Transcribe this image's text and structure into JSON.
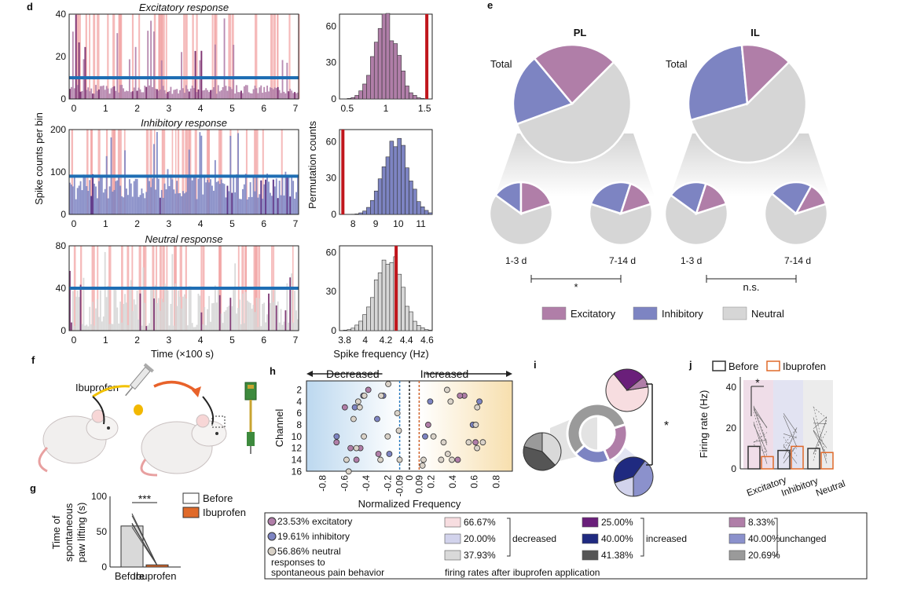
{
  "panels": {
    "d": "d",
    "e": "e",
    "f": "f",
    "g": "g",
    "h": "h",
    "i": "i",
    "j": "j"
  },
  "colors": {
    "excitatory": "#b07ea8",
    "inhibitory": "#7d84c2",
    "neutral": "#d6d6d6",
    "threshold": "#1f6eb4",
    "event": "#f2a3a3",
    "observed": "#c0161c",
    "before": "#333333",
    "ibuprofen": "#e06a2a"
  },
  "d": {
    "x_label": "Time (×100 s)",
    "y_label": "Spike counts per bin",
    "hist_x_label": "Spike frequency (Hz)",
    "hist_y_label": "Permutation counts",
    "time_ticks": [
      "0",
      "1",
      "2",
      "3",
      "4",
      "5",
      "6",
      "7"
    ],
    "rows": [
      {
        "title": "Excitatory response",
        "ymax": 40,
        "yticks": [
          "0",
          "20",
          "40"
        ],
        "threshold": 10,
        "hist_ticks": [
          "0.5",
          "1",
          "1.5"
        ],
        "hist_yticks": [
          "0",
          "30",
          "60"
        ],
        "hist_min": 0.4,
        "hist_max": 1.6,
        "hist_center": 1.0,
        "hist_sd": 0.15,
        "hist_ymax": 70,
        "observed": 1.53
      },
      {
        "title": "Inhibitory response",
        "ymax": 200,
        "yticks": [
          "0",
          "100",
          "200"
        ],
        "threshold": 90,
        "hist_ticks": [
          "8",
          "9",
          "10",
          "11"
        ],
        "hist_yticks": [
          "0",
          "30",
          "60"
        ],
        "hist_min": 7.4,
        "hist_max": 11.5,
        "hist_center": 9.9,
        "hist_sd": 0.55,
        "hist_ymax": 70,
        "observed": 7.55
      },
      {
        "title": "Neutral response",
        "ymax": 80,
        "yticks": [
          "0",
          "40",
          "80"
        ],
        "threshold": 40,
        "hist_ticks": [
          "3.8",
          "4",
          "4.2",
          "4.4",
          "4.6"
        ],
        "hist_yticks": [
          "0",
          "30",
          "60"
        ],
        "hist_min": 3.75,
        "hist_max": 4.65,
        "hist_center": 4.22,
        "hist_sd": 0.13,
        "hist_ymax": 65,
        "observed": 4.3
      }
    ]
  },
  "e": {
    "groups": [
      {
        "title": "PL",
        "total_label": "Total",
        "main": {
          "excitatory": 23.53,
          "inhibitory": 19.61,
          "neutral": 56.86
        },
        "subs": [
          {
            "label": "1-3 d",
            "excitatory": 20,
            "inhibitory": 15,
            "neutral": 65
          },
          {
            "label": "7-14 d",
            "excitatory": 15,
            "inhibitory": 25,
            "neutral": 60
          }
        ],
        "stat": "*"
      },
      {
        "title": "IL",
        "total_label": "Total",
        "main": {
          "excitatory": 14,
          "inhibitory": 28,
          "neutral": 58
        },
        "subs": [
          {
            "label": "1-3 d",
            "excitatory": 15,
            "inhibitory": 20,
            "neutral": 65
          },
          {
            "label": "7-14 d",
            "excitatory": 12,
            "inhibitory": 22,
            "neutral": 66
          }
        ],
        "stat": "n.s."
      }
    ],
    "legend": [
      "Excitatory",
      "Inhibitory",
      "Neutral"
    ]
  },
  "f": {
    "drug_label": "Ibuprofen"
  },
  "g": {
    "y_label_lines": [
      "Time of",
      "spontaneous",
      "paw lifting (s)"
    ],
    "yticks": [
      "0",
      "50",
      "100"
    ],
    "ymax": 100,
    "categories": [
      "Before",
      "Ibuprofen"
    ],
    "values": [
      58,
      3
    ],
    "stat": "***",
    "legend": [
      "Before",
      "Ibuprofen"
    ]
  },
  "h": {
    "decreased_label": "Decreased",
    "increased_label": "Increased",
    "x_label": "Normalized Frequency",
    "y_label": "Channel",
    "xticks": [
      "-0.8",
      "-0.6",
      "-0.4",
      "-0.2",
      "-0.09",
      "0",
      "0.09",
      "0.2",
      "0.4",
      "0.6",
      "0.8"
    ],
    "yticks": [
      "2",
      "4",
      "6",
      "8",
      "10",
      "12",
      "14",
      "16"
    ]
  },
  "i": {
    "stat": "*",
    "ring": {
      "excitatory": 23.53,
      "inhibitory": 19.61,
      "neutral": 56.86
    },
    "excitatory_pie": [
      66.67,
      25.0,
      8.33
    ],
    "inhibitory_pie": [
      20.0,
      40.0,
      40.0
    ],
    "neutral_pie": [
      37.93,
      41.38,
      20.69
    ]
  },
  "j": {
    "y_label": "Firing rate (Hz)",
    "yticks": [
      "0",
      "20",
      "40"
    ],
    "ymax": 45,
    "legend": [
      "Before",
      "Ibuprofen"
    ],
    "categories": [
      "Excitatory",
      "Inhibitory",
      "Neutral"
    ],
    "before": [
      11,
      9,
      10
    ],
    "after": [
      6,
      11,
      8
    ],
    "stat": "*"
  },
  "table": {
    "resp": [
      "23.53% excitatory",
      "19.61% inhibitory",
      "56.86% neutral"
    ],
    "resp_note1": "responses to",
    "resp_note2": "spontaneous pain behavior",
    "decreased": [
      "66.67%",
      "20.00%",
      "37.93%"
    ],
    "increased": [
      "25.00%",
      "40.00%",
      "41.38%"
    ],
    "unchanged": [
      "8.33%",
      "40.00%",
      "20.69%"
    ],
    "decreased_label": "decreased",
    "increased_label": "increased",
    "unchanged_label": "unchanged",
    "footer": "firing rates after ibuprofen application",
    "swatch_dec": [
      "#f7dde0",
      "#d2d3ec",
      "#d9d9d9"
    ],
    "swatch_inc": [
      "#6a1f7a",
      "#1f2a80",
      "#555555"
    ],
    "swatch_unc": [
      "#b07ea8",
      "#8b91cc",
      "#9a9a9a"
    ]
  }
}
